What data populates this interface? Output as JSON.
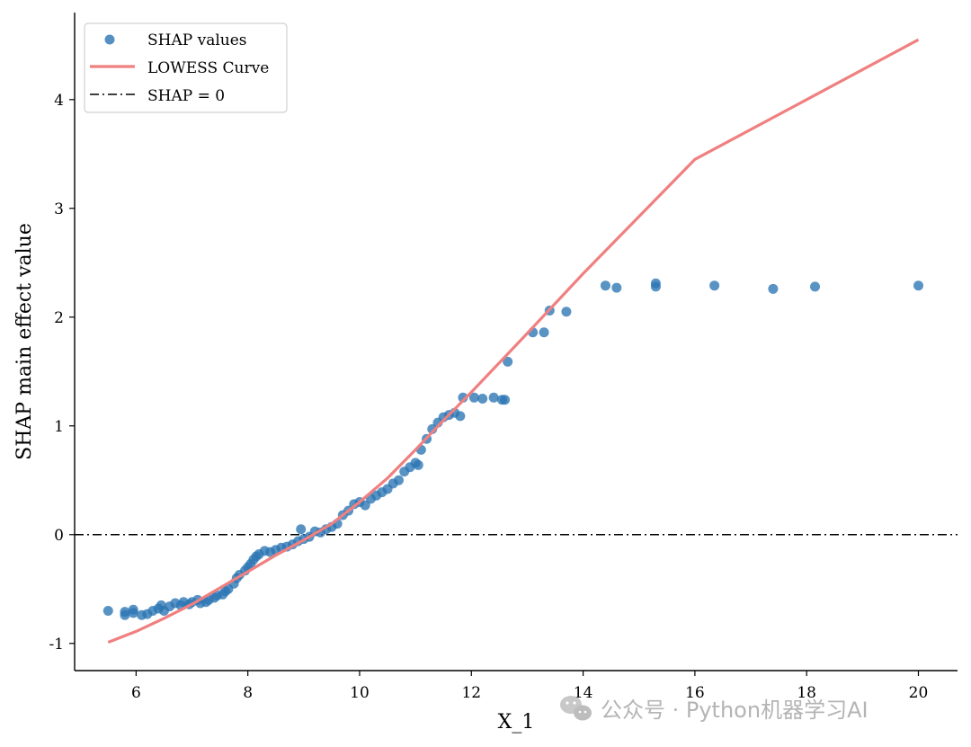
{
  "chart_data": {
    "type": "scatter",
    "title": "",
    "xlabel": "X_1",
    "ylabel": "SHAP main effect value",
    "xlim": [
      4.9,
      20.7
    ],
    "ylim": [
      -1.25,
      4.8
    ],
    "xticks": [
      6,
      8,
      10,
      12,
      14,
      16,
      18,
      20
    ],
    "yticks": [
      -1,
      0,
      1,
      2,
      3,
      4
    ],
    "xtick_labels": [
      "6",
      "8",
      "10",
      "12",
      "14",
      "16",
      "18",
      "20"
    ],
    "ytick_labels": [
      "-1",
      "0",
      "1",
      "2",
      "3",
      "4"
    ],
    "reference_line": {
      "y": 0,
      "style": "dash-dot",
      "color": "#000000"
    },
    "series": [
      {
        "name": "SHAP values",
        "kind": "scatter",
        "color": "#2a74b4",
        "points": [
          [
            5.5,
            -0.7
          ],
          [
            5.8,
            -0.74
          ],
          [
            5.8,
            -0.71
          ],
          [
            5.95,
            -0.69
          ],
          [
            5.95,
            -0.72
          ],
          [
            6.1,
            -0.74
          ],
          [
            6.2,
            -0.73
          ],
          [
            6.3,
            -0.7
          ],
          [
            6.4,
            -0.68
          ],
          [
            6.45,
            -0.65
          ],
          [
            6.5,
            -0.7
          ],
          [
            6.6,
            -0.66
          ],
          [
            6.7,
            -0.63
          ],
          [
            6.8,
            -0.65
          ],
          [
            6.85,
            -0.62
          ],
          [
            6.95,
            -0.64
          ],
          [
            7.0,
            -0.62
          ],
          [
            7.1,
            -0.6
          ],
          [
            7.15,
            -0.63
          ],
          [
            7.25,
            -0.62
          ],
          [
            7.3,
            -0.6
          ],
          [
            7.4,
            -0.58
          ],
          [
            7.45,
            -0.56
          ],
          [
            7.55,
            -0.55
          ],
          [
            7.6,
            -0.52
          ],
          [
            7.65,
            -0.5
          ],
          [
            7.75,
            -0.45
          ],
          [
            7.8,
            -0.4
          ],
          [
            7.85,
            -0.37
          ],
          [
            7.95,
            -0.33
          ],
          [
            8.0,
            -0.3
          ],
          [
            8.05,
            -0.27
          ],
          [
            8.1,
            -0.23
          ],
          [
            8.15,
            -0.2
          ],
          [
            8.2,
            -0.18
          ],
          [
            8.3,
            -0.15
          ],
          [
            8.4,
            -0.16
          ],
          [
            8.5,
            -0.14
          ],
          [
            8.6,
            -0.12
          ],
          [
            8.7,
            -0.11
          ],
          [
            8.8,
            -0.09
          ],
          [
            8.9,
            -0.06
          ],
          [
            8.95,
            0.05
          ],
          [
            9.0,
            -0.04
          ],
          [
            9.1,
            -0.02
          ],
          [
            9.2,
            0.03
          ],
          [
            9.3,
            0.02
          ],
          [
            9.4,
            0.05
          ],
          [
            9.5,
            0.07
          ],
          [
            9.6,
            0.1
          ],
          [
            9.7,
            0.18
          ],
          [
            9.8,
            0.22
          ],
          [
            9.9,
            0.28
          ],
          [
            10.0,
            0.3
          ],
          [
            10.1,
            0.27
          ],
          [
            10.2,
            0.33
          ],
          [
            10.3,
            0.36
          ],
          [
            10.4,
            0.39
          ],
          [
            10.5,
            0.42
          ],
          [
            10.6,
            0.47
          ],
          [
            10.7,
            0.5
          ],
          [
            10.8,
            0.58
          ],
          [
            10.9,
            0.62
          ],
          [
            11.0,
            0.66
          ],
          [
            11.05,
            0.64
          ],
          [
            11.1,
            0.78
          ],
          [
            11.2,
            0.88
          ],
          [
            11.3,
            0.97
          ],
          [
            11.4,
            1.03
          ],
          [
            11.5,
            1.08
          ],
          [
            11.6,
            1.1
          ],
          [
            11.7,
            1.12
          ],
          [
            11.8,
            1.09
          ],
          [
            11.85,
            1.26
          ],
          [
            12.05,
            1.26
          ],
          [
            12.2,
            1.25
          ],
          [
            12.4,
            1.26
          ],
          [
            12.55,
            1.24
          ],
          [
            12.6,
            1.24
          ],
          [
            12.65,
            1.59
          ],
          [
            13.1,
            1.86
          ],
          [
            13.3,
            1.86
          ],
          [
            13.4,
            2.06
          ],
          [
            13.7,
            2.05
          ],
          [
            14.4,
            2.29
          ],
          [
            14.6,
            2.27
          ],
          [
            15.3,
            2.31
          ],
          [
            15.3,
            2.28
          ],
          [
            16.35,
            2.29
          ],
          [
            17.4,
            2.26
          ],
          [
            18.15,
            2.28
          ],
          [
            20.0,
            2.29
          ]
        ]
      },
      {
        "name": "LOWESS Curve",
        "kind": "line",
        "color": "#f08080",
        "points": [
          [
            5.5,
            -0.99
          ],
          [
            6.0,
            -0.89
          ],
          [
            6.5,
            -0.77
          ],
          [
            7.0,
            -0.64
          ],
          [
            7.5,
            -0.49
          ],
          [
            8.0,
            -0.34
          ],
          [
            8.5,
            -0.19
          ],
          [
            9.0,
            -0.05
          ],
          [
            9.5,
            0.1
          ],
          [
            10.0,
            0.3
          ],
          [
            10.5,
            0.52
          ],
          [
            11.0,
            0.78
          ],
          [
            11.5,
            1.05
          ],
          [
            12.0,
            1.31
          ],
          [
            13.0,
            1.85
          ],
          [
            14.0,
            2.4
          ],
          [
            16.0,
            3.45
          ],
          [
            18.0,
            4.0
          ],
          [
            20.0,
            4.55
          ]
        ]
      }
    ],
    "legend": {
      "position": "top-left",
      "entries": [
        {
          "label": "SHAP values",
          "marker": "dot",
          "color": "#2a74b4"
        },
        {
          "label": "LOWESS Curve",
          "marker": "line",
          "color": "#f08080"
        },
        {
          "label": "SHAP = 0",
          "marker": "dashdot",
          "color": "#000000"
        }
      ]
    }
  },
  "watermark": {
    "text": "公众号 · Python机器学习AI",
    "icon": "wechat-icon"
  }
}
